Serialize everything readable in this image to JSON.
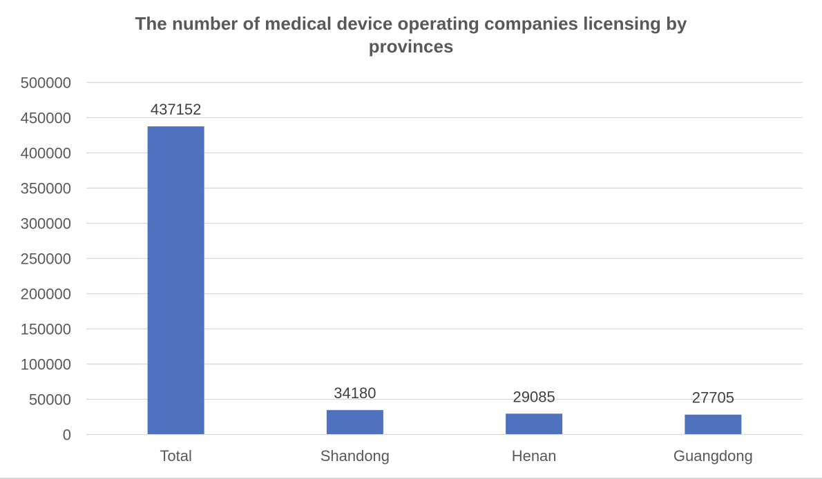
{
  "chart_data": {
    "type": "bar",
    "title_lines": [
      "The number of medical device operating companies licensing by",
      "provinces"
    ],
    "categories": [
      "Total",
      "Shandong",
      "Henan",
      "Guangdong"
    ],
    "values": [
      437152,
      34180,
      29085,
      27705
    ],
    "data_labels": [
      "437152",
      "34180",
      "29085",
      "27705"
    ],
    "y_ticks": [
      "0",
      "50000",
      "100000",
      "150000",
      "200000",
      "250000",
      "300000",
      "350000",
      "400000",
      "450000",
      "500000"
    ],
    "ylim": [
      0,
      500000
    ],
    "xlabel": "",
    "ylabel": "",
    "grid": true,
    "legend": "none"
  },
  "colors": {
    "bar": "#4f71be",
    "grid": "#d9d9d9",
    "axis_text": "#595959",
    "label_text": "#404040",
    "title_text": "#595959"
  }
}
